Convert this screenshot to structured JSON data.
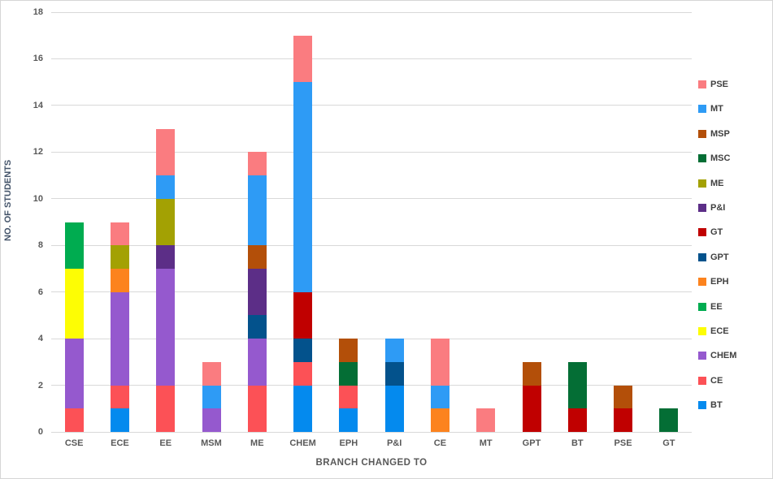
{
  "chart_data": {
    "type": "bar",
    "stacked": true,
    "xlabel": "BRANCH CHANGED TO",
    "ylabel": "NO. OF STUDENTS",
    "ylim": [
      0,
      18
    ],
    "ytick_step": 2,
    "grid": true,
    "legend_position": "right",
    "categories": [
      "CSE",
      "ECE",
      "EE",
      "MSM",
      "ME",
      "CHEM",
      "EPH",
      "P&I",
      "CE",
      "MT",
      "GPT",
      "BT",
      "PSE",
      "GT"
    ],
    "series": [
      {
        "name": "BT",
        "color": "#048AEE",
        "values": [
          0,
          1,
          0,
          0,
          0,
          2,
          1,
          2,
          0,
          0,
          0,
          0,
          0,
          0
        ]
      },
      {
        "name": "CE",
        "color": "#FC5156",
        "values": [
          1,
          1,
          2,
          0,
          2,
          1,
          1,
          0,
          0,
          0,
          0,
          0,
          0,
          0
        ]
      },
      {
        "name": "CHEM",
        "color": "#9559CE",
        "values": [
          3,
          4,
          5,
          1,
          2,
          0,
          0,
          0,
          0,
          0,
          0,
          0,
          0,
          0
        ]
      },
      {
        "name": "ECE",
        "color": "#FDFD04",
        "values": [
          3,
          0,
          0,
          0,
          0,
          0,
          0,
          0,
          0,
          0,
          0,
          0,
          0,
          0
        ]
      },
      {
        "name": "EE",
        "color": "#00AC50",
        "values": [
          2,
          0,
          0,
          0,
          0,
          0,
          0,
          0,
          0,
          0,
          0,
          0,
          0,
          0
        ]
      },
      {
        "name": "EPH",
        "color": "#FC831E",
        "values": [
          0,
          1,
          0,
          0,
          0,
          0,
          0,
          0,
          1,
          0,
          0,
          0,
          0,
          0
        ]
      },
      {
        "name": "GPT",
        "color": "#03528C",
        "values": [
          0,
          0,
          0,
          0,
          1,
          1,
          0,
          1,
          0,
          0,
          0,
          0,
          0,
          0
        ]
      },
      {
        "name": "GT",
        "color": "#C00000",
        "values": [
          0,
          0,
          0,
          0,
          0,
          2,
          0,
          0,
          0,
          0,
          2,
          1,
          1,
          0
        ]
      },
      {
        "name": "P&I",
        "color": "#5C2E87",
        "values": [
          0,
          0,
          1,
          0,
          2,
          0,
          0,
          0,
          0,
          0,
          0,
          0,
          0,
          0
        ]
      },
      {
        "name": "ME",
        "color": "#A3A103",
        "values": [
          0,
          1,
          2,
          0,
          0,
          0,
          0,
          0,
          0,
          0,
          0,
          0,
          0,
          0
        ]
      },
      {
        "name": "MSC",
        "color": "#046E35",
        "values": [
          0,
          0,
          0,
          0,
          0,
          0,
          1,
          0,
          0,
          0,
          0,
          2,
          0,
          1
        ]
      },
      {
        "name": "MSP",
        "color": "#B34F09",
        "values": [
          0,
          0,
          0,
          0,
          1,
          0,
          1,
          0,
          0,
          0,
          1,
          0,
          1,
          0
        ]
      },
      {
        "name": "MT",
        "color": "#2E9BF5",
        "values": [
          0,
          0,
          1,
          1,
          3,
          9,
          0,
          1,
          1,
          0,
          0,
          0,
          0,
          0
        ]
      },
      {
        "name": "PSE",
        "color": "#FA7C80",
        "values": [
          0,
          1,
          2,
          1,
          1,
          2,
          0,
          0,
          2,
          1,
          0,
          0,
          0,
          0
        ]
      }
    ],
    "legend_order_top_to_bottom": [
      "PSE",
      "MT",
      "MSP",
      "MSC",
      "ME",
      "P&I",
      "GT",
      "GPT",
      "EPH",
      "EE",
      "ECE",
      "CHEM",
      "CE",
      "BT"
    ],
    "category_totals": [
      9,
      9,
      13,
      3,
      12,
      17,
      4,
      4,
      4,
      1,
      3,
      3,
      2,
      1
    ]
  },
  "colors": {
    "gridline": "#d9d9d9",
    "tick_label": "#595959",
    "x_label": "#595959",
    "y_axis_title": "#44546a",
    "x_axis_title": "#595959",
    "legend_label": "#404040",
    "background": "#ffffff",
    "frame_border": "#d6d6d6"
  }
}
